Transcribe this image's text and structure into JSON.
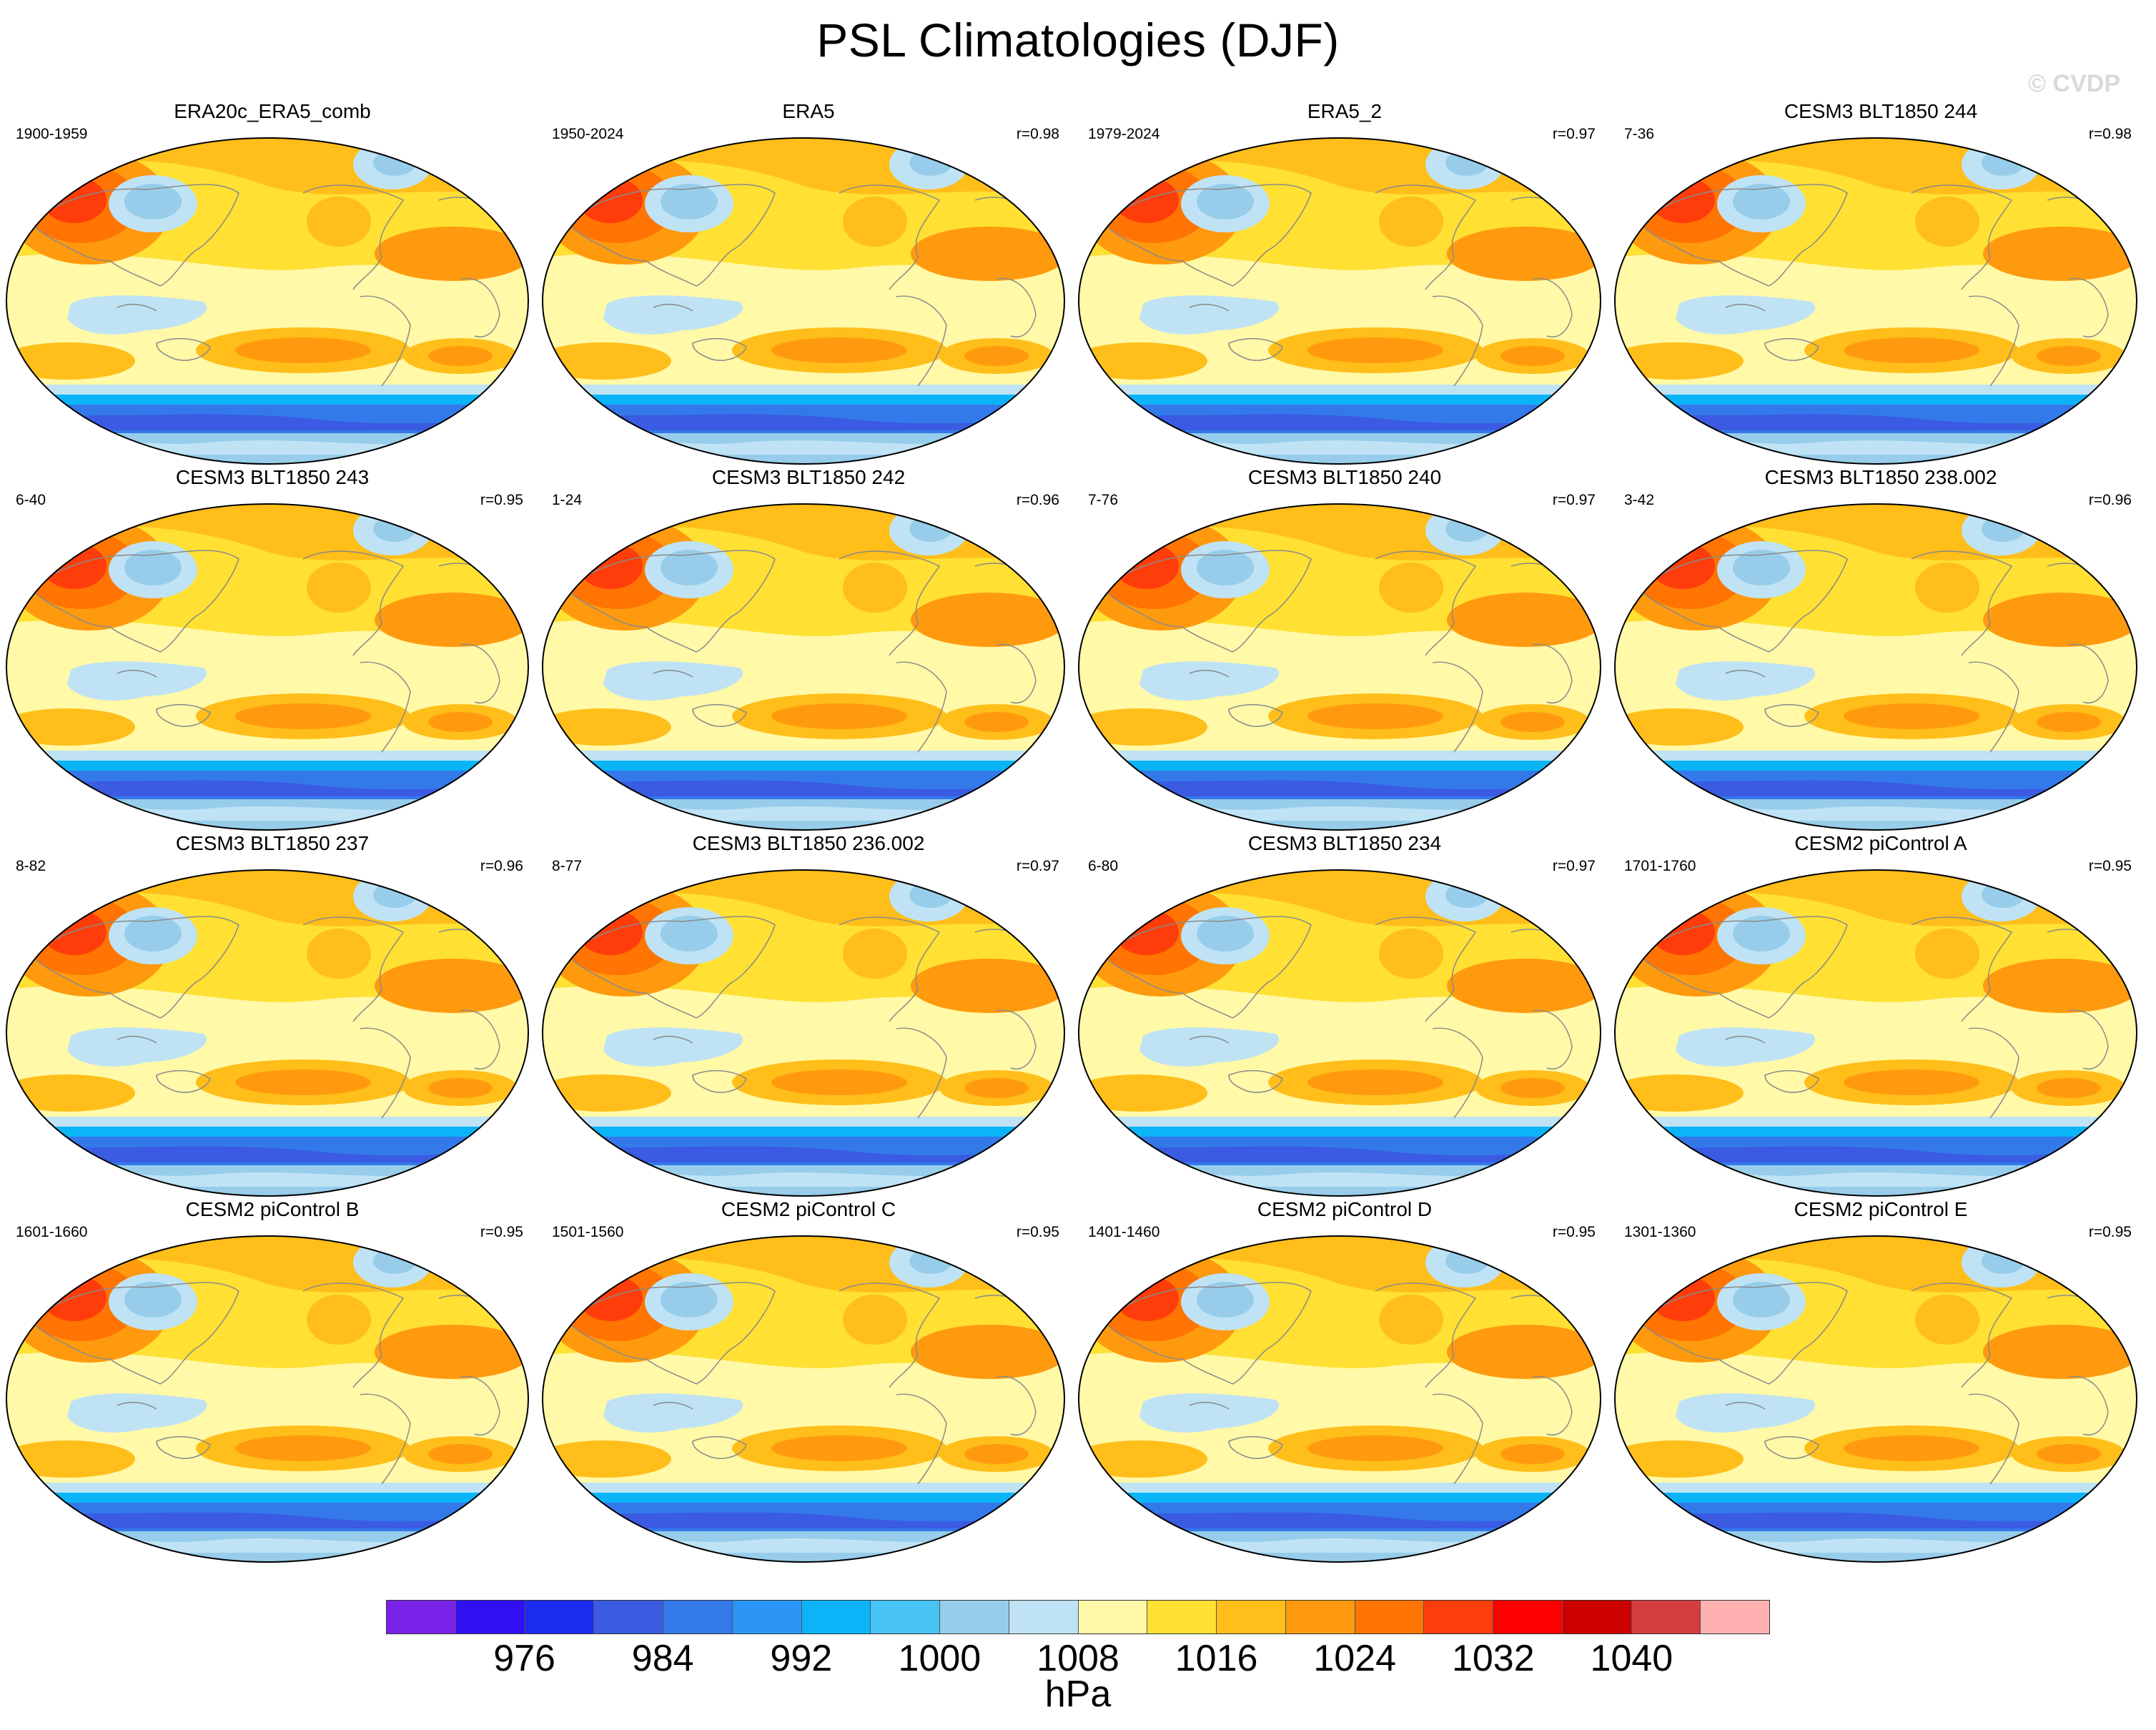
{
  "title": "PSL Climatologies (DJF)",
  "copyright": "© CVDP",
  "colors": {
    "levels": [
      "#7b22e8",
      "#3010f0",
      "#1a2cf0",
      "#3a5be2",
      "#3379ea",
      "#2b95f5",
      "#0bb4f7",
      "#48c3f5",
      "#97cdea",
      "#bfe3f5",
      "#fff9a8",
      "#ffe033",
      "#ffbe1a",
      "#ff9a0e",
      "#ff7402",
      "#ff3d0b",
      "#ff0000",
      "#cc0000",
      "#d43d3d",
      "#ffb0b0"
    ],
    "coast": "#8a8a8a"
  },
  "colorbar": {
    "tick_labels": [
      "976",
      "984",
      "992",
      "1000",
      "1008",
      "1016",
      "1024",
      "1032",
      "1040"
    ],
    "units": "hPa"
  },
  "panels": [
    {
      "title": "ERA20c_ERA5_comb",
      "period": "1900-1959",
      "corr": ""
    },
    {
      "title": "ERA5",
      "period": "1950-2024",
      "corr": "r=0.98"
    },
    {
      "title": "ERA5_2",
      "period": "1979-2024",
      "corr": "r=0.97"
    },
    {
      "title": "CESM3 BLT1850 244",
      "period": "7-36",
      "corr": "r=0.98"
    },
    {
      "title": "CESM3 BLT1850 243",
      "period": "6-40",
      "corr": "r=0.95"
    },
    {
      "title": "CESM3 BLT1850 242",
      "period": "1-24",
      "corr": "r=0.96"
    },
    {
      "title": "CESM3 BLT1850 240",
      "period": "7-76",
      "corr": "r=0.97"
    },
    {
      "title": "CESM3 BLT1850 238.002",
      "period": "3-42",
      "corr": "r=0.96"
    },
    {
      "title": "CESM3 BLT1850 237",
      "period": "8-82",
      "corr": "r=0.96"
    },
    {
      "title": "CESM3 BLT1850 236.002",
      "period": "8-77",
      "corr": "r=0.97"
    },
    {
      "title": "CESM3 BLT1850 234",
      "period": "6-80",
      "corr": "r=0.97"
    },
    {
      "title": "CESM2 piControl A",
      "period": "1701-1760",
      "corr": "r=0.95"
    },
    {
      "title": "CESM2 piControl B",
      "period": "1601-1660",
      "corr": "r=0.95"
    },
    {
      "title": "CESM2 piControl C",
      "period": "1501-1560",
      "corr": "r=0.95"
    },
    {
      "title": "CESM2 piControl D",
      "period": "1401-1460",
      "corr": "r=0.95"
    },
    {
      "title": "CESM2 piControl E",
      "period": "1301-1360",
      "corr": "r=0.95"
    }
  ]
}
